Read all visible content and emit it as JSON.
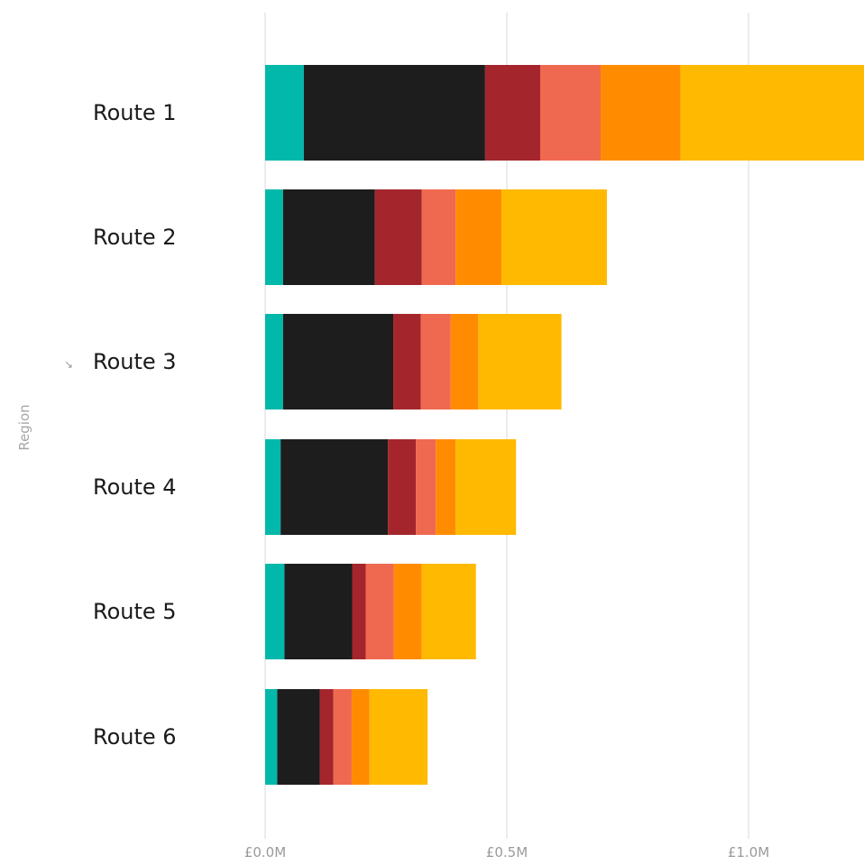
{
  "chart_data": {
    "type": "bar",
    "orientation": "horizontal",
    "stacked": true,
    "ylabel": "Region",
    "xlabel": "",
    "categories": [
      "Route 1",
      "Route 2",
      "Route 3",
      "Route 4",
      "Route 5",
      "Route 6"
    ],
    "xlim": [
      0,
      1.24
    ],
    "xticks": [
      {
        "value": 0,
        "label": "£0.0M"
      },
      {
        "value": 0.5,
        "label": "£0.5M"
      },
      {
        "value": 1.0,
        "label": "£1.0M"
      }
    ],
    "grid": true,
    "series": [
      {
        "color": "#01B8AA",
        "values": [
          0.08,
          0.037,
          0.037,
          0.032,
          0.04,
          0.025
        ]
      },
      {
        "color": "#1D1D1D",
        "values": [
          0.375,
          0.19,
          0.228,
          0.222,
          0.14,
          0.088
        ]
      },
      {
        "color": "#A4262C",
        "values": [
          0.114,
          0.097,
          0.057,
          0.058,
          0.028,
          0.028
        ]
      },
      {
        "color": "#EF6950",
        "values": [
          0.125,
          0.07,
          0.062,
          0.041,
          0.058,
          0.038
        ]
      },
      {
        "color": "#FF8C00",
        "values": [
          0.165,
          0.095,
          0.057,
          0.041,
          0.058,
          0.037
        ]
      },
      {
        "color": "#FFB900",
        "values": [
          0.38,
          0.218,
          0.172,
          0.125,
          0.112,
          0.12
        ]
      }
    ],
    "sort_indicator": "↘"
  }
}
